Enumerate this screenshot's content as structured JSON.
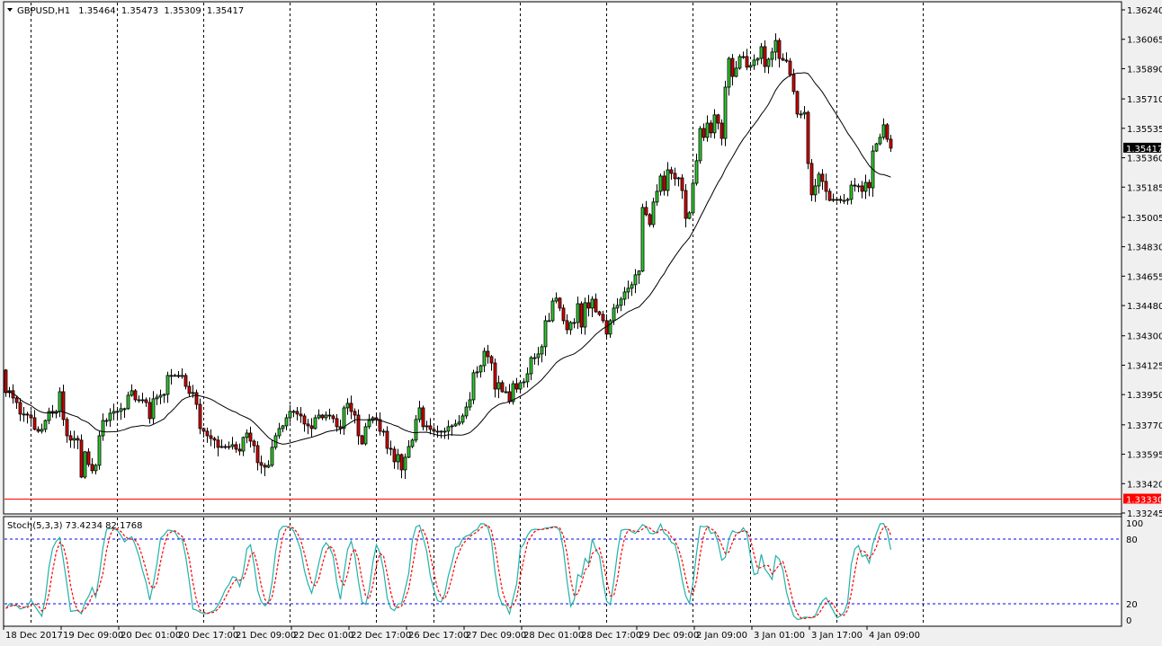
{
  "header": {
    "symbol_timeframe": "GBPUSD,H1",
    "open": "1.35464",
    "high": "1.35473",
    "low": "1.35309",
    "close": "1.35417",
    "menu_icon": "triangle-down-icon"
  },
  "price_axis": {
    "ticks": [
      "1.36240",
      "1.36065",
      "1.35890",
      "1.35710",
      "1.35535",
      "1.35360",
      "1.35185",
      "1.35005",
      "1.34830",
      "1.34655",
      "1.34480",
      "1.34300",
      "1.34125",
      "1.33950",
      "1.33770",
      "1.33595",
      "1.33420",
      "1.33245"
    ],
    "current_price_label": "1.35417",
    "horizontal_line_label": "1.33330"
  },
  "time_axis": {
    "labels": [
      "18 Dec 2017",
      "19 Dec 09:00",
      "20 Dec 01:00",
      "20 Dec 17:00",
      "21 Dec 09:00",
      "22 Dec 01:00",
      "22 Dec 17:00",
      "26 Dec 17:00",
      "27 Dec 09:00",
      "28 Dec 01:00",
      "28 Dec 17:00",
      "29 Dec 09:00",
      "2 Jan 09:00",
      "3 Jan 01:00",
      "3 Jan 17:00",
      "4 Jan 09:00"
    ]
  },
  "stochastic": {
    "label": "Stoch(5,3,3) 73.4234 82.1768",
    "levels": [
      "100",
      "80",
      "20",
      "0"
    ],
    "main_color": "#20b2aa",
    "signal_color": "#ff0000",
    "level_color": "#0000ff"
  },
  "colors": {
    "bull": "#2ecc2e",
    "bear": "#d40000",
    "moving_average": "#000000",
    "horizontal_line": "#ff0000",
    "current_price_box": "#000000"
  },
  "chart_data": {
    "type": "candlestick",
    "symbol": "GBPUSD",
    "timeframe": "H1",
    "ylim": [
      1.33245,
      1.3624
    ],
    "horizontal_line": 1.3333,
    "last_price": 1.35417,
    "first_open": 1.34096,
    "moving_average_period": 24,
    "close": [
      1.33962,
      1.33973,
      1.3393,
      1.33903,
      1.33834,
      1.33834,
      1.33828,
      1.33812,
      1.33743,
      1.33732,
      1.33743,
      1.33796,
      1.3385,
      1.33839,
      1.3385,
      1.33967,
      1.33802,
      1.33705,
      1.33679,
      1.33689,
      1.33679,
      1.33459,
      1.33609,
      1.33534,
      1.33497,
      1.33529,
      1.33705,
      1.33796,
      1.33796,
      1.33839,
      1.3385,
      1.3385,
      1.33866,
      1.33866,
      1.33946,
      1.33973,
      1.33919,
      1.33919,
      1.33919,
      1.33903,
      1.33807,
      1.33925,
      1.33935,
      1.33946,
      1.33951,
      1.34064,
      1.34064,
      1.34064,
      1.34058,
      1.34064,
      1.33999,
      1.33957,
      1.33962,
      1.33892,
      1.33748,
      1.33732,
      1.33705,
      1.33689,
      1.33679,
      1.33636,
      1.33641,
      1.33636,
      1.33641,
      1.33652,
      1.33625,
      1.33614,
      1.33695,
      1.33721,
      1.33673,
      1.33646,
      1.33545,
      1.33529,
      1.33518,
      1.33529,
      1.33636,
      1.33705,
      1.33748,
      1.33764,
      1.33812,
      1.3385,
      1.3385,
      1.33834,
      1.33823,
      1.33775,
      1.33764,
      1.33748,
      1.33812,
      1.33828,
      1.33812,
      1.33828,
      1.33823,
      1.33807,
      1.33759,
      1.33748,
      1.33871,
      1.33898,
      1.3385,
      1.33828,
      1.33705,
      1.33657,
      1.33759,
      1.33796,
      1.33812,
      1.33802,
      1.33732,
      1.33732,
      1.3363,
      1.33625,
      1.3355,
      1.33593,
      1.33502,
      1.33577,
      1.33641,
      1.33679,
      1.33802,
      1.33871,
      1.33759,
      1.33764,
      1.33743,
      1.33732,
      1.33732,
      1.33732,
      1.33732,
      1.33759,
      1.33764,
      1.33775,
      1.33786,
      1.33823,
      1.33876,
      1.33919,
      1.3408,
      1.34085,
      1.34122,
      1.34208,
      1.34176,
      1.34138,
      1.33983,
      1.34021,
      1.33967,
      1.33967,
      1.33908,
      1.34015,
      1.33983,
      1.34021,
      1.34026,
      1.34074,
      1.3417,
      1.3417,
      1.34192,
      1.34235,
      1.3439,
      1.3439,
      1.34507,
      1.34524,
      1.34465,
      1.3439,
      1.34336,
      1.34379,
      1.34379,
      1.34491,
      1.34352,
      1.34497,
      1.34465,
      1.34518,
      1.34443,
      1.34427,
      1.3439,
      1.3431,
      1.3439,
      1.34465,
      1.34481,
      1.34518,
      1.34561,
      1.34583,
      1.34604,
      1.34663,
      1.34685,
      1.35064,
      1.35021,
      1.34962,
      1.35096,
      1.3516,
      1.35251,
      1.35165,
      1.35288,
      1.35267,
      1.35235,
      1.3524,
      1.35165,
      1.34999,
      1.35032,
      1.35208,
      1.35342,
      1.35534,
      1.35481,
      1.35566,
      1.35508,
      1.35615,
      1.35566,
      1.35475,
      1.3578,
      1.35951,
      1.35844,
      1.35893,
      1.35962,
      1.35962,
      1.35899,
      1.35909,
      1.35941,
      1.35951,
      1.36021,
      1.35903,
      1.35946,
      1.35989,
      1.36058,
      1.35951,
      1.35941,
      1.35935,
      1.35855,
      1.35754,
      1.3562,
      1.3562,
      1.3563,
      1.35326,
      1.35139,
      1.35192,
      1.35262,
      1.35219,
      1.3516,
      1.35106,
      1.35112,
      1.35112,
      1.35106,
      1.35106,
      1.35112,
      1.35197,
      1.35192,
      1.35192,
      1.3516,
      1.35213,
      1.35181,
      1.354,
      1.35443,
      1.35481,
      1.35556,
      1.3547,
      1.35417
    ]
  }
}
